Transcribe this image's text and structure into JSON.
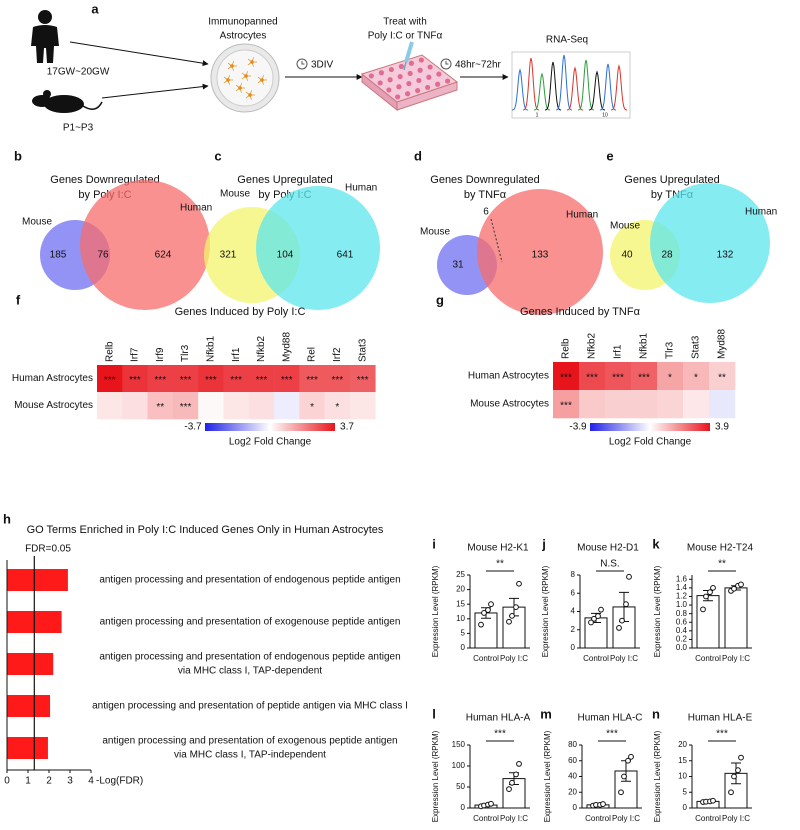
{
  "panel_a": {
    "label": "a",
    "human_age": "17GW~20GW",
    "mouse_age": "P1~P3",
    "cells": [
      "Immunopanned",
      "Astrocytes"
    ],
    "culture_time": "3DIV",
    "treatment": [
      "Treat with",
      "Poly I:C or TNFα"
    ],
    "treatment_time": "48hr~72hr",
    "readout": "RNA-Seq",
    "trace_ticks": [
      "1",
      "10"
    ]
  },
  "venns": [
    {
      "label": "b",
      "title": [
        "Genes Downregulated",
        "by Poly I:C"
      ],
      "sets": [
        "Mouse",
        "Human"
      ],
      "counts": [
        185,
        76,
        624
      ],
      "colors": [
        "#6f6ff2",
        "#f76c6c"
      ]
    },
    {
      "label": "c",
      "title": [
        "Genes Upregulated",
        "by Poly I:C"
      ],
      "sets": [
        "Mouse",
        "Human"
      ],
      "counts": [
        321,
        104,
        641
      ],
      "colors": [
        "#f4f46c",
        "#5ce6ec"
      ]
    },
    {
      "label": "d",
      "title": [
        "Genes Downregulated",
        "by TNFα"
      ],
      "sets": [
        "Mouse",
        "Human"
      ],
      "counts": [
        31,
        6,
        133
      ],
      "colors": [
        "#6f6ff2",
        "#f76c6c"
      ]
    },
    {
      "label": "e",
      "title": [
        "Genes Upregulated",
        "by TNFα"
      ],
      "sets": [
        "Mouse",
        "Human"
      ],
      "counts": [
        40,
        28,
        132
      ],
      "colors": [
        "#f4f46c",
        "#5ce6ec"
      ]
    }
  ],
  "heatmaps": [
    {
      "label": "f",
      "title": "Genes Induced by Poly I:C",
      "genes": [
        "Relb",
        "Irf7",
        "Irf9",
        "Tlr3",
        "Nfkb1",
        "Irf1",
        "Nfkb2",
        "Myd88",
        "Rel",
        "Irf2",
        "Stat3"
      ],
      "rows": [
        "Human Astrocytes",
        "Mouse Astrocytes"
      ],
      "values": [
        [
          3.7,
          3.2,
          3.0,
          3.0,
          3.2,
          3.0,
          3.0,
          3.0,
          2.6,
          2.6,
          2.5
        ],
        [
          0.4,
          0.5,
          1.0,
          1.1,
          0.1,
          0.4,
          0.5,
          -0.3,
          0.7,
          0.5,
          0.4
        ]
      ],
      "stars": [
        [
          "***",
          "***",
          "***",
          "***",
          "***",
          "***",
          "***",
          "***",
          "***",
          "***",
          "***"
        ],
        [
          null,
          null,
          "**",
          "***",
          null,
          null,
          null,
          null,
          "*",
          "*",
          null
        ]
      ],
      "colorbar_lim": [
        -3.7,
        3.7
      ],
      "colorbar_label": "Log2 Fold Change",
      "colormap": [
        "#2222e6",
        "#ffffff",
        "#e8141b"
      ]
    },
    {
      "label": "g",
      "title": "Genes Induced by TNFα",
      "genes": [
        "Relb",
        "Nfkb2",
        "Irf1",
        "Nfkb1",
        "Tlr3",
        "Stat3",
        "Myd88"
      ],
      "rows": [
        "Human Astrocytes",
        "Mouse Astrocytes"
      ],
      "values": [
        [
          3.9,
          3.0,
          2.8,
          2.6,
          1.5,
          1.2,
          0.8
        ],
        [
          1.6,
          0.9,
          0.8,
          0.8,
          0.7,
          0.4,
          -0.4
        ]
      ],
      "stars": [
        [
          "***",
          "***",
          "***",
          "***",
          "*",
          "*",
          "**"
        ],
        [
          "***",
          null,
          null,
          null,
          null,
          null,
          null
        ]
      ],
      "colorbar_lim": [
        -3.9,
        3.9
      ],
      "colorbar_label": "Log2 Fold Change",
      "colormap": [
        "#2222e6",
        "#ffffff",
        "#e8141b"
      ]
    }
  ],
  "go_terms": {
    "label": "h",
    "title": "GO Terms Enriched in Poly I:C Induced Genes Only in Human Astrocytes",
    "threshold": {
      "label": "FDR=0.05",
      "value": 1.3
    },
    "terms": [
      [
        "antigen processing and presentation of endogenous peptide antigen"
      ],
      [
        "antigen processing and presentation of exogenouse peptide antigen"
      ],
      [
        "antigen processing and presentation of endogenous peptide antigen",
        "via MHC class I, TAP-dependent"
      ],
      [
        "antigen processing and presentation of peptide antigen via MHC class I"
      ],
      [
        "antigen processing and presentation of exogenous peptide antigen",
        "via MHC class I, TAP-independent"
      ]
    ],
    "values": [
      2.9,
      2.6,
      2.2,
      2.05,
      1.95
    ],
    "color": "#ff1a1a",
    "xlim": [
      0,
      4
    ],
    "xticks": [
      0,
      1,
      2,
      3,
      4
    ],
    "xlabel": "-Log(FDR)"
  },
  "expression": [
    {
      "label": "i",
      "title": "Mouse H2-K1",
      "ylabel": "Expression Level (RPKM)",
      "categories": [
        "Control",
        "Poly I:C"
      ],
      "means": [
        12,
        14
      ],
      "errors": [
        1.8,
        3
      ],
      "points": [
        [
          8,
          12,
          13,
          15
        ],
        [
          9,
          11,
          14,
          22
        ]
      ],
      "ylim": [
        0,
        25
      ],
      "yticks": [
        0,
        5,
        10,
        15,
        20,
        25
      ],
      "significance": "**"
    },
    {
      "label": "j",
      "title": "Mouse H2-D1",
      "ylabel": "Expression Level (RPKM)",
      "categories": [
        "Control",
        "Poly I:C"
      ],
      "means": [
        3.3,
        4.5
      ],
      "errors": [
        0.5,
        1.6
      ],
      "points": [
        [
          2.8,
          3.2,
          3.5,
          4.2
        ],
        [
          2.2,
          3,
          4.8,
          7.8
        ]
      ],
      "ylim": [
        0,
        8
      ],
      "yticks": [
        0,
        2,
        4,
        6,
        8
      ],
      "significance": "N.S."
    },
    {
      "label": "k",
      "title": "Mouse H2-T24",
      "ylabel": "Expression Level (RPKM)",
      "categories": [
        "Control",
        "Poly I:C"
      ],
      "means": [
        1.22,
        1.4
      ],
      "errors": [
        0.12,
        0.05
      ],
      "points": [
        [
          0.9,
          1.2,
          1.3,
          1.4
        ],
        [
          1.33,
          1.38,
          1.45,
          1.48
        ]
      ],
      "ylim": [
        0,
        1.7
      ],
      "yticks": [
        {
          "value": 0,
          "label": "0.0"
        },
        0.2,
        0.4,
        0.6,
        0.8,
        {
          "value": 1,
          "label": "1.0"
        },
        1.2,
        1.4,
        1.6
      ],
      "significance": "**"
    },
    {
      "label": "l",
      "title": "Human HLA-A",
      "ylabel": "Expression Level (RPKM)",
      "categories": [
        "Control",
        "Poly I:C"
      ],
      "means": [
        7,
        70
      ],
      "errors": [
        2,
        14
      ],
      "points": [
        [
          4,
          6,
          8,
          10
        ],
        [
          45,
          60,
          80,
          105
        ]
      ],
      "ylim": [
        0,
        150
      ],
      "yticks": [
        0,
        50,
        100,
        150
      ],
      "significance": "***"
    },
    {
      "label": "m",
      "title": "Human HLA-C",
      "ylabel": "Expression Level (RPKM)",
      "categories": [
        "Control",
        "Poly I:C"
      ],
      "means": [
        4,
        47
      ],
      "errors": [
        0.5,
        13
      ],
      "points": [
        [
          3,
          4,
          4,
          5
        ],
        [
          20,
          40,
          60,
          65
        ]
      ],
      "ylim": [
        0,
        80
      ],
      "yticks": [
        0,
        20,
        40,
        60,
        80
      ],
      "significance": "***"
    },
    {
      "label": "n",
      "title": "Human HLA-E",
      "ylabel": "Expression Level (RPKM)",
      "categories": [
        "Control",
        "Poly I:C"
      ],
      "means": [
        2.1,
        11
      ],
      "errors": [
        0.1,
        3.3
      ],
      "points": [
        [
          1.9,
          2,
          2.1,
          2.3
        ],
        [
          5,
          10,
          12,
          16
        ]
      ],
      "ylim": [
        0,
        20
      ],
      "yticks": [
        0,
        5,
        10,
        15,
        20
      ],
      "significance": "***"
    }
  ]
}
